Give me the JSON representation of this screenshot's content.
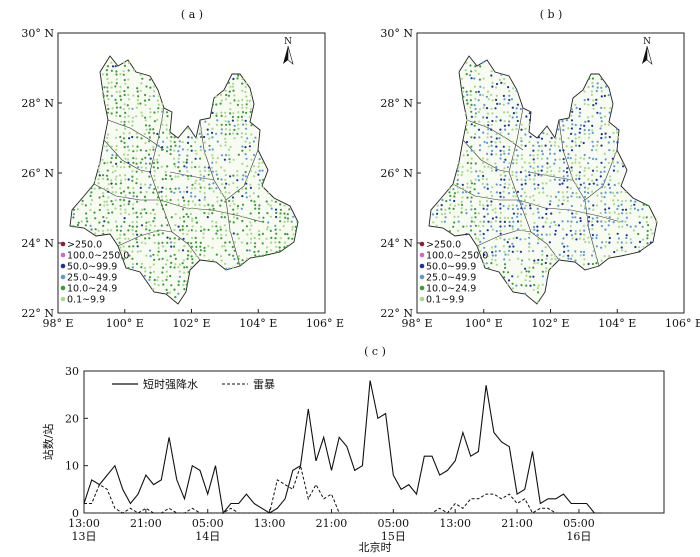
{
  "captions": {
    "a": "( a )",
    "b": "( b )",
    "c": "( c )"
  },
  "map_axes": {
    "lat_labels": [
      "30° N",
      "28° N",
      "26° N",
      "24° N",
      "22° N"
    ],
    "lat_values": [
      30,
      28,
      26,
      24,
      22
    ],
    "lon_labels": [
      "98° E",
      "100° E",
      "102° E",
      "104° E",
      "106° E"
    ],
    "lon_values": [
      98,
      100,
      102,
      104,
      106
    ],
    "north_label": "N"
  },
  "precip_legend": [
    {
      "label": ">250.0",
      "color": "#8b1a3c"
    },
    {
      "label": "100.0~250.0",
      "color": "#cc66cc"
    },
    {
      "label": "50.0~99.9",
      "color": "#1a3399"
    },
    {
      "label": "25.0~49.9",
      "color": "#5b9bd5"
    },
    {
      "label": "10.0~24.9",
      "color": "#3a9a3a"
    },
    {
      "label": "0.1~9.9",
      "color": "#a8d88a"
    }
  ],
  "chart_data": {
    "type": "line",
    "ylabel": "站数/站",
    "xlabel": "北京时",
    "ylim": [
      0,
      30
    ],
    "yticks": [
      0,
      10,
      20,
      30
    ],
    "xrange_hours": [
      0,
      75
    ],
    "xticks": [
      {
        "hour": 0,
        "time": "13:00",
        "day": "13日"
      },
      {
        "hour": 8,
        "time": "21:00",
        "day": ""
      },
      {
        "hour": 16,
        "time": "05:00",
        "day": "14日"
      },
      {
        "hour": 24,
        "time": "13:00",
        "day": ""
      },
      {
        "hour": 32,
        "time": "21:00",
        "day": ""
      },
      {
        "hour": 40,
        "time": "05:00",
        "day": "15日"
      },
      {
        "hour": 48,
        "time": "13:00",
        "day": ""
      },
      {
        "hour": 56,
        "time": "21:00",
        "day": ""
      },
      {
        "hour": 64,
        "time": "05:00",
        "day": "16日"
      }
    ],
    "series": [
      {
        "name": "短时强降水",
        "style": "solid",
        "x": [
          0,
          1,
          2,
          3,
          4,
          5,
          6,
          7,
          8,
          9,
          10,
          11,
          12,
          13,
          14,
          15,
          16,
          17,
          18,
          19,
          20,
          21,
          22,
          23,
          24,
          25,
          26,
          27,
          28,
          29,
          30,
          31,
          32,
          33,
          34,
          35,
          36,
          37,
          38,
          39,
          40,
          41,
          42,
          43,
          44,
          45,
          46,
          47,
          48,
          49,
          50,
          51,
          52,
          53,
          54,
          55,
          56,
          57,
          58,
          59,
          60,
          61,
          62,
          63,
          64,
          65,
          66,
          67
        ],
        "values": [
          2,
          7,
          6,
          8,
          10,
          5,
          2,
          4,
          8,
          6,
          7,
          16,
          7,
          3,
          10,
          9,
          4,
          10,
          0,
          2,
          2,
          4,
          2,
          1,
          0,
          1,
          3,
          9,
          10,
          22,
          11,
          16,
          9,
          16,
          14,
          9,
          10,
          28,
          20,
          21,
          8,
          5,
          6,
          4,
          12,
          12,
          8,
          9,
          11,
          17,
          12,
          13,
          27,
          17,
          15,
          14,
          4,
          5,
          13,
          2,
          3,
          3,
          4,
          2,
          2,
          2,
          0,
          0
        ]
      },
      {
        "name": "雷暴",
        "style": "dashed",
        "x": [
          0,
          1,
          2,
          3,
          4,
          5,
          6,
          7,
          8,
          9,
          10,
          11,
          12,
          13,
          14,
          15,
          16,
          17,
          18,
          19,
          20,
          21,
          22,
          23,
          24,
          25,
          26,
          27,
          28,
          29,
          30,
          31,
          32,
          33,
          34,
          35,
          36,
          37,
          38,
          39,
          40,
          41,
          42,
          43,
          44,
          45,
          46,
          47,
          48,
          49,
          50,
          51,
          52,
          53,
          54,
          55,
          56,
          57,
          58,
          59,
          60,
          61,
          62,
          63,
          64,
          65,
          66,
          67
        ],
        "values": [
          2,
          2,
          6,
          5,
          1,
          0,
          1,
          0,
          1,
          0,
          0,
          1,
          0,
          0,
          1,
          0,
          0,
          0,
          0,
          1,
          0,
          0,
          0,
          0,
          0,
          7,
          6,
          5,
          10,
          3,
          6,
          3,
          4,
          0,
          0,
          0,
          0,
          0,
          0,
          0,
          0,
          0,
          0,
          0,
          0,
          0,
          1,
          0,
          2,
          1,
          3,
          3,
          4,
          4,
          3,
          4,
          2,
          3,
          0,
          1,
          1,
          0,
          0,
          0,
          0,
          0,
          0,
          0
        ]
      }
    ]
  }
}
